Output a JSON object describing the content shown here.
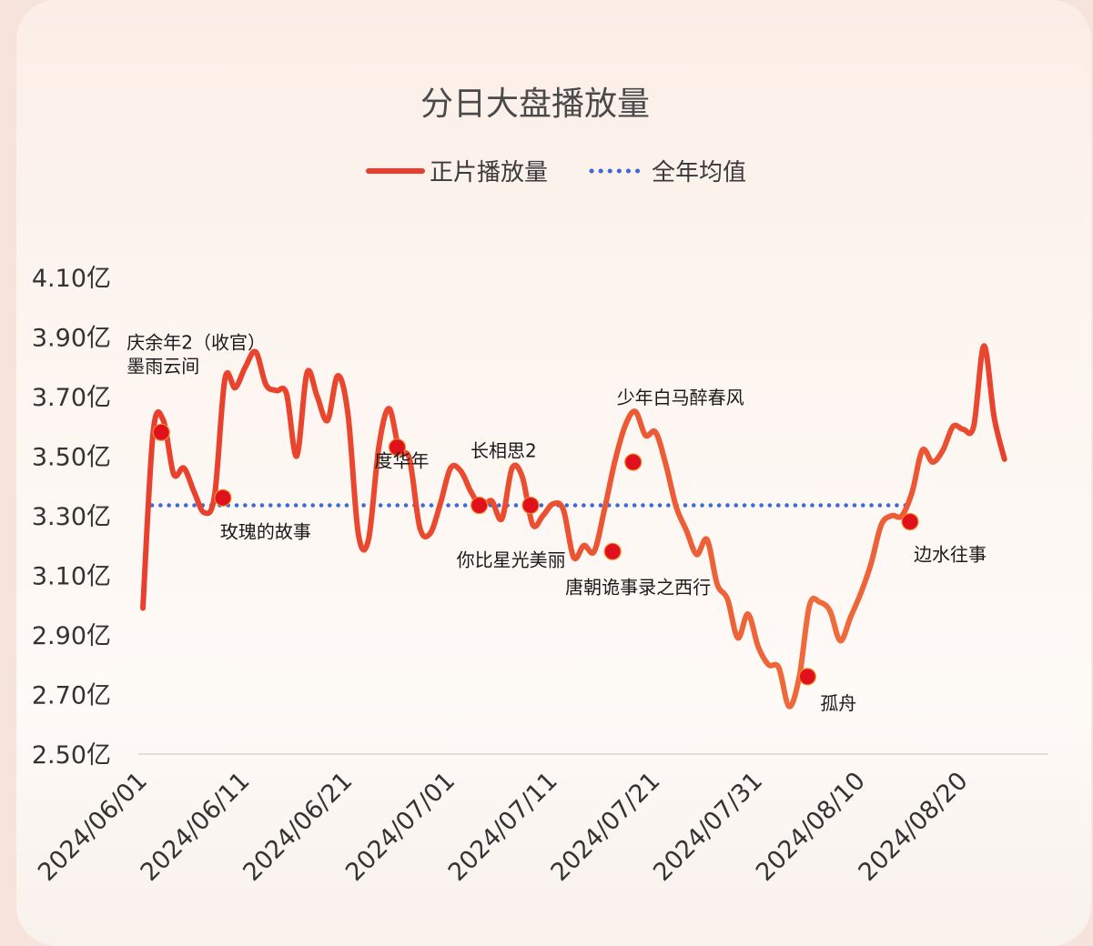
{
  "chart_data": {
    "type": "line",
    "title": "分日大盘播放量",
    "legend": [
      "正片播放量",
      "全年均值"
    ],
    "legend_placement": "top-center",
    "colors": {
      "series": "#e8402e",
      "average": "#3d6ad6",
      "marker": "#e0101c"
    },
    "y_unit": "亿",
    "ylim": [
      2.5,
      4.1
    ],
    "y_ticks": [
      "2.50亿",
      "2.70亿",
      "2.90亿",
      "3.10亿",
      "3.30亿",
      "3.50亿",
      "3.70亿",
      "3.90亿",
      "4.10亿"
    ],
    "x_ticks": [
      "2024/06/01",
      "2024/06/11",
      "2024/06/21",
      "2024/07/01",
      "2024/07/11",
      "2024/07/21",
      "2024/07/31",
      "2024/08/10",
      "2024/08/20"
    ],
    "x_range": [
      "2024-06-01",
      "2024-08-28"
    ],
    "grid": false,
    "series": [
      {
        "name": "正片播放量",
        "points": [
          [
            "2024-06-01",
            2.99
          ],
          [
            "2024-06-02",
            3.58
          ],
          [
            "2024-06-03",
            3.62
          ],
          [
            "2024-06-04",
            3.44
          ],
          [
            "2024-06-05",
            3.46
          ],
          [
            "2024-06-06",
            3.38
          ],
          [
            "2024-06-07",
            3.31
          ],
          [
            "2024-06-08",
            3.37
          ],
          [
            "2024-06-09",
            3.76
          ],
          [
            "2024-06-10",
            3.73
          ],
          [
            "2024-06-11",
            3.8
          ],
          [
            "2024-06-12",
            3.85
          ],
          [
            "2024-06-13",
            3.74
          ],
          [
            "2024-06-14",
            3.72
          ],
          [
            "2024-06-15",
            3.71
          ],
          [
            "2024-06-16",
            3.5
          ],
          [
            "2024-06-17",
            3.78
          ],
          [
            "2024-06-18",
            3.7
          ],
          [
            "2024-06-19",
            3.62
          ],
          [
            "2024-06-20",
            3.77
          ],
          [
            "2024-06-21",
            3.64
          ],
          [
            "2024-06-22",
            3.24
          ],
          [
            "2024-06-23",
            3.22
          ],
          [
            "2024-06-24",
            3.53
          ],
          [
            "2024-06-25",
            3.66
          ],
          [
            "2024-06-26",
            3.52
          ],
          [
            "2024-06-27",
            3.49
          ],
          [
            "2024-06-28",
            3.26
          ],
          [
            "2024-06-29",
            3.24
          ],
          [
            "2024-06-30",
            3.34
          ],
          [
            "2024-07-01",
            3.46
          ],
          [
            "2024-07-02",
            3.45
          ],
          [
            "2024-07-03",
            3.38
          ],
          [
            "2024-07-04",
            3.33
          ],
          [
            "2024-07-05",
            3.35
          ],
          [
            "2024-07-06",
            3.29
          ],
          [
            "2024-07-07",
            3.46
          ],
          [
            "2024-07-08",
            3.43
          ],
          [
            "2024-07-09",
            3.27
          ],
          [
            "2024-07-10",
            3.3
          ],
          [
            "2024-07-11",
            3.34
          ],
          [
            "2024-07-12",
            3.32
          ],
          [
            "2024-07-13",
            3.16
          ],
          [
            "2024-07-14",
            3.2
          ],
          [
            "2024-07-15",
            3.18
          ],
          [
            "2024-07-16",
            3.32
          ],
          [
            "2024-07-17",
            3.48
          ],
          [
            "2024-07-18",
            3.6
          ],
          [
            "2024-07-19",
            3.65
          ],
          [
            "2024-07-20",
            3.57
          ],
          [
            "2024-07-21",
            3.58
          ],
          [
            "2024-07-22",
            3.47
          ],
          [
            "2024-07-23",
            3.33
          ],
          [
            "2024-07-24",
            3.25
          ],
          [
            "2024-07-25",
            3.17
          ],
          [
            "2024-07-26",
            3.22
          ],
          [
            "2024-07-27",
            3.07
          ],
          [
            "2024-07-28",
            3.02
          ],
          [
            "2024-07-29",
            2.89
          ],
          [
            "2024-07-30",
            2.97
          ],
          [
            "2024-07-31",
            2.86
          ],
          [
            "2024-08-01",
            2.8
          ],
          [
            "2024-08-02",
            2.79
          ],
          [
            "2024-08-03",
            2.66
          ],
          [
            "2024-08-04",
            2.76
          ],
          [
            "2024-08-05",
            3.0
          ],
          [
            "2024-08-06",
            3.01
          ],
          [
            "2024-08-07",
            2.98
          ],
          [
            "2024-08-08",
            2.88
          ],
          [
            "2024-08-09",
            2.96
          ],
          [
            "2024-08-10",
            3.04
          ],
          [
            "2024-08-11",
            3.14
          ],
          [
            "2024-08-12",
            3.27
          ],
          [
            "2024-08-13",
            3.3
          ],
          [
            "2024-08-14",
            3.3
          ],
          [
            "2024-08-15",
            3.38
          ],
          [
            "2024-08-16",
            3.52
          ],
          [
            "2024-08-17",
            3.48
          ],
          [
            "2024-08-18",
            3.52
          ],
          [
            "2024-08-19",
            3.6
          ],
          [
            "2024-08-20",
            3.59
          ],
          [
            "2024-08-21",
            3.6
          ],
          [
            "2024-08-22",
            3.87
          ],
          [
            "2024-08-23",
            3.63
          ],
          [
            "2024-08-24",
            3.49
          ]
        ]
      },
      {
        "name": "全年均值",
        "style": "dotted",
        "value": 3.335,
        "x_range": [
          "2024-06-01",
          "2024-08-14"
        ]
      }
    ],
    "annotations": [
      {
        "date": "2024-06-02",
        "value": 3.58,
        "label": "庆余年2（收官）",
        "label2": "墨雨云间",
        "pos": "above"
      },
      {
        "date": "2024-06-08",
        "value": 3.36,
        "label": "玫瑰的故事",
        "pos": "below"
      },
      {
        "date": "2024-06-25",
        "value": 3.53,
        "label": "度华年",
        "pos": "on"
      },
      {
        "date": "2024-07-03",
        "value": 3.335,
        "label": "你比星光美丽",
        "pos": "below"
      },
      {
        "date": "2024-07-08",
        "value": 3.335,
        "label": "长相思2",
        "pos": "above"
      },
      {
        "date": "2024-07-16",
        "value": 3.18,
        "label": "唐朝诡事录之西行",
        "pos": "below"
      },
      {
        "date": "2024-07-18",
        "value": 3.48,
        "label": "少年白马醉春风",
        "pos": "above"
      },
      {
        "date": "2024-08-04",
        "value": 2.76,
        "label": "孤舟",
        "pos": "below"
      },
      {
        "date": "2024-08-14",
        "value": 3.28,
        "label": "边水往事",
        "pos": "below"
      }
    ]
  }
}
